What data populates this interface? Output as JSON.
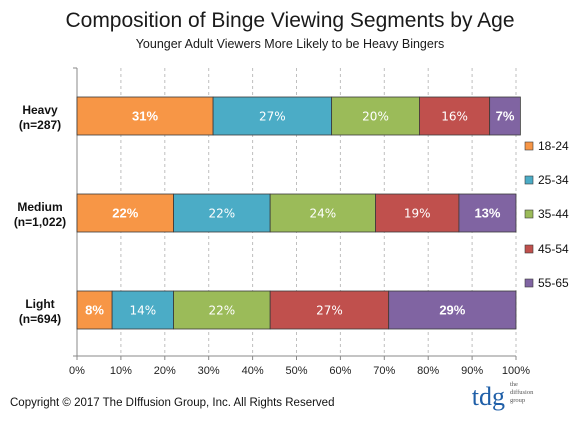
{
  "chart_data": {
    "type": "bar",
    "orientation": "horizontal",
    "stacked": true,
    "title": "Composition of Binge Viewing Segments by Age",
    "subtitle": "Younger Adult Viewers More Likely to be Heavy Bingers",
    "categories": [
      {
        "name": "Heavy",
        "n": "(n=287)"
      },
      {
        "name": "Medium",
        "n": "(n=1,022)"
      },
      {
        "name": "Light",
        "n": "(n=694)"
      }
    ],
    "series": [
      {
        "name": "18-24",
        "color": "#F79646",
        "values": [
          31,
          22,
          8
        ],
        "labels": [
          "31%",
          "22%",
          "8%"
        ],
        "bold_labels": true
      },
      {
        "name": "25-34",
        "color": "#4BACC6",
        "values": [
          27,
          22,
          14
        ],
        "labels": [
          "27%",
          "22%",
          "14%"
        ]
      },
      {
        "name": "35-44",
        "color": "#9BBB59",
        "values": [
          20,
          24,
          22
        ],
        "labels": [
          "20%",
          "24%",
          "22%"
        ]
      },
      {
        "name": "45-54",
        "color": "#C0504D",
        "values": [
          16,
          19,
          27
        ],
        "labels": [
          "16%",
          "19%",
          "27%"
        ]
      },
      {
        "name": "55-65",
        "color": "#8064A2",
        "values": [
          7,
          13,
          29
        ],
        "labels": [
          "7%",
          "13%",
          "29%"
        ],
        "bold_labels": true
      }
    ],
    "xlim": [
      0,
      100
    ],
    "xticks": [
      "0%",
      "10%",
      "20%",
      "30%",
      "40%",
      "50%",
      "60%",
      "70%",
      "80%",
      "90%",
      "100%"
    ],
    "grid": true,
    "legend_position": "right"
  },
  "footer": {
    "copyright": "Copyright © 2017 The DIffusion Group, Inc. All Rights Reserved"
  },
  "logo": {
    "mark": "tdg",
    "line1": "the",
    "line2": "diffusion",
    "line3": "group",
    "color": "#1F5FA8"
  }
}
